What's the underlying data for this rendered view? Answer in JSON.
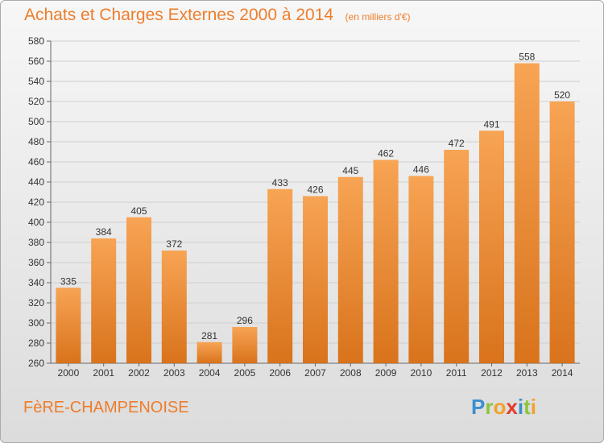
{
  "header": {
    "title": "Achats et Charges Externes 2000 à 2014",
    "units": "(en milliers d'€)"
  },
  "footer": {
    "commune": "FèRE-CHAMPENOISE",
    "logo_letters": [
      {
        "ch": "P",
        "color": "#3a8fd0"
      },
      {
        "ch": "r",
        "color": "#8cc43c"
      },
      {
        "ch": "o",
        "color": "#f0a22a"
      },
      {
        "ch": "x",
        "color": "#e43b2c"
      },
      {
        "ch": "i",
        "color": "#3a8fd0"
      },
      {
        "ch": "t",
        "color": "#8cc43c"
      },
      {
        "ch": "i",
        "color": "#f0a22a"
      }
    ]
  },
  "chart_data": {
    "type": "bar",
    "title": "Achats et Charges Externes 2000 à 2014",
    "subtitle": "(en milliers d'€)",
    "xlabel": "",
    "ylabel": "",
    "categories": [
      "2000",
      "2001",
      "2002",
      "2003",
      "2004",
      "2005",
      "2006",
      "2007",
      "2008",
      "2009",
      "2010",
      "2011",
      "2012",
      "2013",
      "2014"
    ],
    "values": [
      335,
      384,
      405,
      372,
      281,
      296,
      433,
      426,
      445,
      462,
      446,
      472,
      491,
      558,
      520
    ],
    "ylim": [
      260,
      580
    ],
    "yticks": [
      260,
      280,
      300,
      320,
      340,
      360,
      380,
      400,
      420,
      440,
      460,
      480,
      500,
      520,
      540,
      560,
      580
    ],
    "grid": true,
    "bar_color": "#f0953f"
  }
}
